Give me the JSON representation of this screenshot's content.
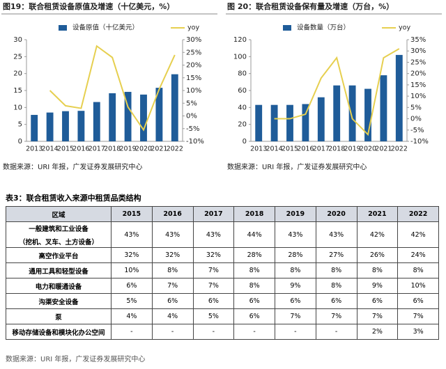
{
  "chart_data": [
    {
      "type": "bar",
      "title": "图19：联合租赁设备原值及增速（十亿美元，%）",
      "categories": [
        "2013",
        "2014",
        "2015",
        "2016",
        "2017",
        "2018",
        "2019",
        "2020",
        "2021",
        "2022"
      ],
      "series": [
        {
          "name": "设备原值（十亿美元）",
          "color": "#1f5c99",
          "values": [
            7.8,
            8.5,
            8.9,
            9.0,
            11.6,
            14.2,
            14.6,
            13.8,
            15.8,
            19.8
          ]
        },
        {
          "name": "yoy",
          "color": "#e6cf4f",
          "type": "line",
          "axis": "y2",
          "values": [
            null,
            10,
            4,
            3,
            27.5,
            23,
            3.5,
            -5.5,
            10.5,
            24
          ]
        }
      ],
      "ylim": [
        0,
        30
      ],
      "yticks": [
        0,
        5,
        10,
        15,
        20,
        25,
        30
      ],
      "y2lim": [
        -10,
        30
      ],
      "y2ticks": [
        {
          "value": -10,
          "label": "-10%"
        },
        {
          "value": -5,
          "label": "-5%"
        },
        {
          "value": 0,
          "label": "0%"
        },
        {
          "value": 5,
          "label": "5%"
        },
        {
          "value": 10,
          "label": "10%"
        },
        {
          "value": 15,
          "label": "15%"
        },
        {
          "value": 20,
          "label": "20%"
        },
        {
          "value": 25,
          "label": "25%"
        },
        {
          "value": 30,
          "label": "30%"
        }
      ],
      "legend": "top",
      "source": "数据来源：URI 年报，广发证券发展研究中心"
    },
    {
      "type": "bar",
      "title": "图 20：联合租赁设备保有量及增速（万台，%）",
      "categories": [
        "2013",
        "2014",
        "2015",
        "2016",
        "2017",
        "2018",
        "2019",
        "2020",
        "2021",
        "2022"
      ],
      "series": [
        {
          "name": "设备数量（万台）",
          "color": "#1f5c99",
          "values": [
            43,
            43,
            43,
            44,
            52,
            66,
            66,
            62,
            78,
            102
          ]
        },
        {
          "name": "yoy",
          "color": "#e6cf4f",
          "type": "line",
          "axis": "y2",
          "values": [
            null,
            0,
            0,
            2,
            18,
            27,
            0,
            -7,
            27,
            31
          ]
        }
      ],
      "ylim": [
        0,
        120
      ],
      "yticks": [
        0,
        20,
        40,
        60,
        80,
        100,
        120
      ],
      "y2lim": [
        -10,
        35
      ],
      "y2ticks": [
        {
          "value": -10,
          "label": "-10%"
        },
        {
          "value": -5,
          "label": "-5%"
        },
        {
          "value": 0,
          "label": "0%"
        },
        {
          "value": 5,
          "label": "5%"
        },
        {
          "value": 10,
          "label": "10%"
        },
        {
          "value": 15,
          "label": "15%"
        },
        {
          "value": 20,
          "label": "20%"
        },
        {
          "value": 25,
          "label": "25%"
        },
        {
          "value": 30,
          "label": "30%"
        },
        {
          "value": 35,
          "label": "35%"
        }
      ],
      "legend": "top",
      "source": "数据来源：URI 年报，广发证券发展研究中心"
    }
  ],
  "table": {
    "title": "表3：联合租赁收入来源中租赁品类结构",
    "header": [
      "区域",
      "2015",
      "2016",
      "2017",
      "2018",
      "2019",
      "2020",
      "2021",
      "2022"
    ],
    "rows": [
      [
        [
          "一般建筑和工业设备",
          "（挖机、叉车、土方设备）"
        ],
        "43%",
        "43%",
        "43%",
        "44%",
        "43%",
        "43%",
        "42%",
        "42%"
      ],
      [
        [
          "高空作业平台"
        ],
        "32%",
        "32%",
        "32%",
        "28%",
        "28%",
        "27%",
        "26%",
        "24%"
      ],
      [
        [
          "通用工具和轻型设备"
        ],
        "10%",
        "8%",
        "7%",
        "8%",
        "8%",
        "8%",
        "8%",
        "8%"
      ],
      [
        [
          "电力和暖通设备"
        ],
        "6%",
        "7%",
        "7%",
        "8%",
        "9%",
        "8%",
        "9%",
        "10%"
      ],
      [
        [
          "沟渠安全设备"
        ],
        "5%",
        "6%",
        "6%",
        "6%",
        "6%",
        "6%",
        "6%",
        "6%"
      ],
      [
        [
          "泵"
        ],
        "4%",
        "4%",
        "5%",
        "6%",
        "7%",
        "7%",
        "7%",
        "7%"
      ],
      [
        [
          "移动存储设备和模块化办公空间"
        ],
        "-",
        "-",
        "-",
        "-",
        "-",
        "-",
        "2%",
        "3%"
      ]
    ],
    "source": "数据来源：URI 年报，广发证券发展研究中心"
  }
}
